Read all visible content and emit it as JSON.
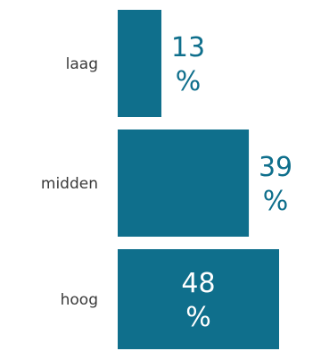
{
  "chart_data": {
    "type": "bar",
    "orientation": "horizontal",
    "categories": [
      "laag",
      "midden",
      "hoog"
    ],
    "values": [
      13,
      39,
      48
    ],
    "value_labels": [
      {
        "number": "13",
        "unit": "%"
      },
      {
        "number": "39",
        "unit": "%"
      },
      {
        "number": "48",
        "unit": "%"
      }
    ],
    "xlim": [
      0,
      48
    ],
    "grid": false,
    "title": "",
    "xlabel": "",
    "ylabel": ""
  },
  "colors": {
    "bar": "#0f6f8c",
    "label_outside": "#0f6f8c",
    "label_inside": "#ffffff",
    "category_text": "#3a3a3a"
  }
}
